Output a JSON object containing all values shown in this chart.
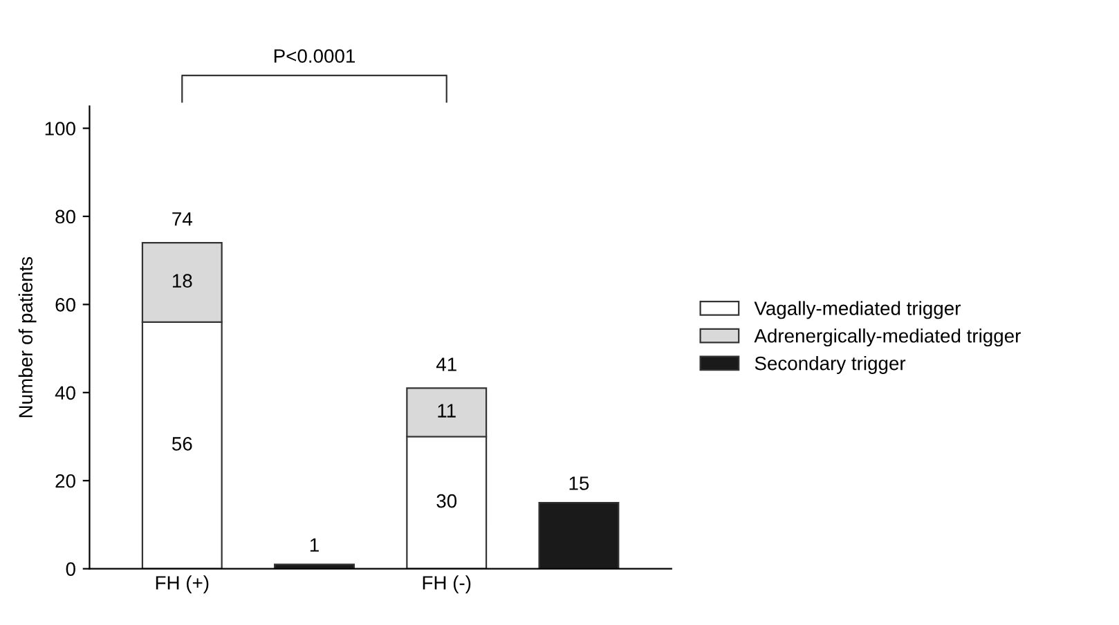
{
  "chart_data": {
    "type": "bar",
    "stacked": true,
    "ylabel": "Number of patients",
    "categories": [
      "FH (+)",
      null,
      "FH (-)",
      null
    ],
    "series": [
      {
        "name": "Vagally-mediated trigger",
        "color": "#ffffff",
        "values": [
          56,
          null,
          30,
          null
        ]
      },
      {
        "name": "Adrenergically-mediated trigger",
        "color": "#d9d9d9",
        "values": [
          18,
          null,
          11,
          null
        ]
      },
      {
        "name": "Secondary trigger",
        "color": "#1a1a1a",
        "values": [
          null,
          1,
          null,
          15
        ]
      }
    ],
    "data_labels": true,
    "totals": [
      "74",
      null,
      "41",
      null
    ],
    "ylim": [
      0,
      105
    ],
    "yticks": [
      0,
      20,
      40,
      60,
      80,
      100
    ],
    "annotations": [
      "P<0.0001"
    ],
    "legend": "right",
    "grid": false
  }
}
